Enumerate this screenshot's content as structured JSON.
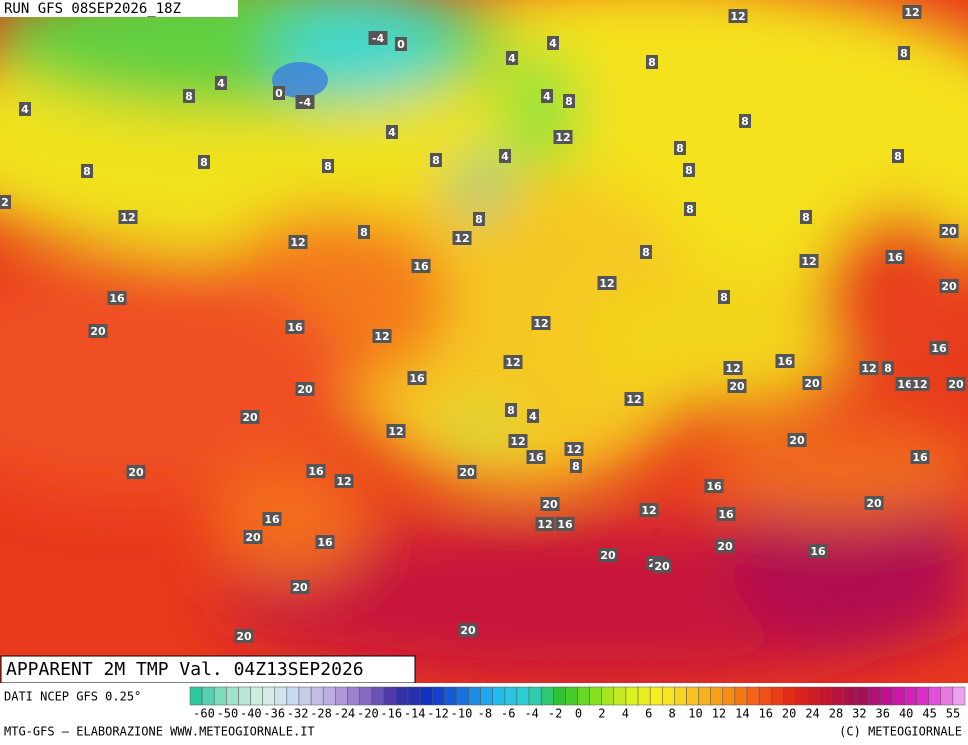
{
  "header": {
    "run": "RUN GFS 08SEP2026_18Z"
  },
  "map": {
    "title": "APPARENT 2M TMP Val. 04Z13SEP2026",
    "labels": [
      12,
      12,
      -4,
      0,
      4,
      4,
      8,
      8,
      4,
      8,
      0,
      -4,
      4,
      4,
      8,
      8,
      4,
      12,
      8,
      8,
      8,
      8,
      8,
      4,
      8,
      8,
      2,
      12,
      8,
      8,
      8,
      8,
      12,
      12,
      20,
      8,
      12,
      16,
      16,
      12,
      20,
      16,
      8,
      12,
      16,
      20,
      12,
      16,
      12,
      16,
      12,
      12,
      8,
      16,
      20,
      20,
      16,
      12,
      20,
      20,
      12,
      8,
      4,
      20,
      12,
      20,
      12,
      12,
      16,
      8,
      20,
      16,
      20,
      16,
      12,
      16,
      20,
      20,
      12,
      12,
      16,
      16,
      16,
      20,
      16,
      20,
      16,
      20,
      20,
      20,
      20,
      20,
      20
    ]
  },
  "legend": {
    "source": "DATI NCEP GFS 0.25°",
    "ticks": [
      -60,
      -50,
      -40,
      -36,
      -32,
      -28,
      -24,
      -20,
      -16,
      -14,
      -12,
      -10,
      -8,
      -6,
      -4,
      -2,
      0,
      2,
      4,
      6,
      8,
      10,
      12,
      14,
      16,
      20,
      24,
      28,
      32,
      36,
      40,
      45,
      55
    ]
  },
  "footer": {
    "left": "MTG-GFS — ELABORAZIONE WWW.METEOGIORNALE.IT",
    "right": "(C) METEOGIORNALE"
  }
}
